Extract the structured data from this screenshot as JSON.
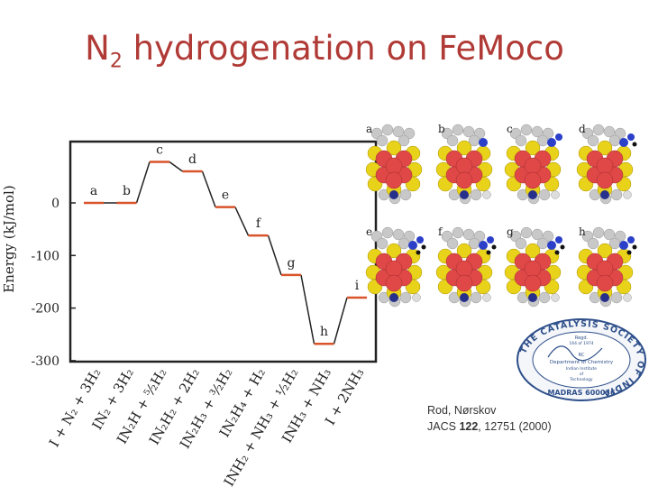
{
  "title": {
    "main": "N",
    "sub": "2",
    "rest": " hydrogenation on FeMoco"
  },
  "chart_data": {
    "type": "line",
    "ylabel": "Energy (kJ/mol)",
    "ylim": [
      -300,
      115
    ],
    "yticks": [
      {
        "v": 0,
        "label": "0"
      },
      {
        "v": -100,
        "label": "-100"
      },
      {
        "v": -200,
        "label": "-200"
      },
      {
        "v": -300,
        "label": "-300"
      }
    ],
    "points": [
      {
        "letter": "a",
        "value": 0
      },
      {
        "letter": "b",
        "value": 0
      },
      {
        "letter": "c",
        "value": 78
      },
      {
        "letter": "d",
        "value": 60
      },
      {
        "letter": "e",
        "value": -8
      },
      {
        "letter": "f",
        "value": -62
      },
      {
        "letter": "g",
        "value": -137
      },
      {
        "letter": "h",
        "value": -268
      },
      {
        "letter": "i",
        "value": -180
      }
    ],
    "xlabels": [
      "I + N₂ + 3H₂",
      "IN₂ + 3H₂",
      "IN₂H + ⁵⁄₂H₂",
      "IN₂H₂ + 2H₂",
      "IN₂H₃ + ³⁄₂H₂",
      "IN₂H₄ + H₂",
      "INH₂ + NH₃ + ½H₂",
      "INH₃ + NH₃",
      "I + 2NH₃"
    ],
    "colors": {
      "level": "#d9542b",
      "axis": "#222222"
    }
  },
  "structures": [
    "a",
    "b",
    "c",
    "d",
    "e",
    "f",
    "g",
    "h"
  ],
  "citation": {
    "authors": "Rod, Nørskov",
    "journal": "JACS ",
    "volume": "122",
    "pages": ",  12751 (2000)"
  },
  "logo": {
    "ring": "THE CATALYSIS SOCIETY OF INDIA",
    "inner_top": "Regd.",
    "inner_num": "164 of 1974",
    "inner_code": "RC",
    "dept": "Department of Chemistry",
    "inst": "Indian Institute",
    "of": "of",
    "tech": "Technology",
    "bottom": "MADRAS  600036"
  }
}
